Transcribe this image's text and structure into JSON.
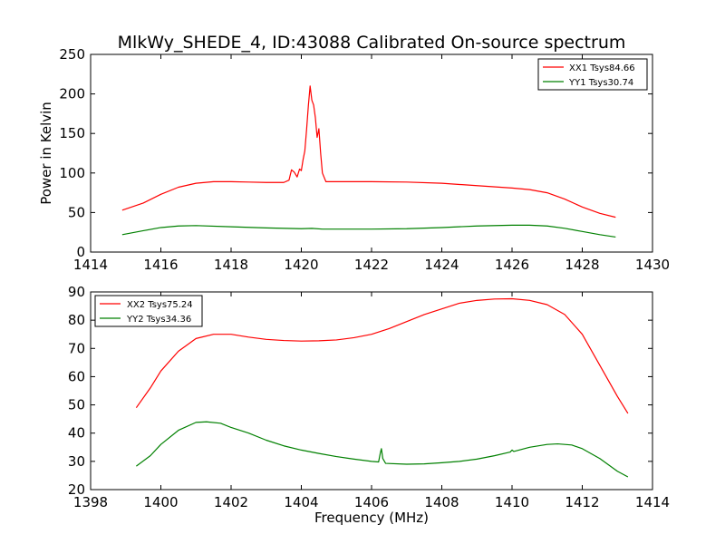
{
  "title": "MlkWy_SHEDE_4, ID:43088 Calibrated On-source spectrum",
  "chart_data": [
    {
      "type": "line",
      "title": "MlkWy_SHEDE_4, ID:43088 Calibrated On-source spectrum",
      "xlabel": "",
      "ylabel": "Power in Kelvin",
      "xlim": [
        1414,
        1430
      ],
      "ylim": [
        0,
        250
      ],
      "xticks": [
        1414,
        1416,
        1418,
        1420,
        1422,
        1424,
        1426,
        1428,
        1430
      ],
      "yticks": [
        0,
        50,
        100,
        150,
        200,
        250
      ],
      "legend": "top-right",
      "grid": false,
      "series": [
        {
          "name": "XX1 Tsys84.66",
          "color": "#ff0000",
          "points": [
            [
              1414.9,
              53
            ],
            [
              1415.5,
              62
            ],
            [
              1416.0,
              73
            ],
            [
              1416.5,
              82
            ],
            [
              1417.0,
              87
            ],
            [
              1417.5,
              89
            ],
            [
              1418.0,
              89
            ],
            [
              1418.5,
              88.5
            ],
            [
              1419.0,
              88
            ],
            [
              1419.5,
              88
            ],
            [
              1419.65,
              91
            ],
            [
              1419.72,
              104
            ],
            [
              1419.8,
              101
            ],
            [
              1419.88,
              95
            ],
            [
              1419.95,
              105
            ],
            [
              1420.0,
              103
            ],
            [
              1420.05,
              117
            ],
            [
              1420.1,
              128
            ],
            [
              1420.15,
              155
            ],
            [
              1420.2,
              185
            ],
            [
              1420.25,
              210
            ],
            [
              1420.3,
              192
            ],
            [
              1420.35,
              186
            ],
            [
              1420.4,
              170
            ],
            [
              1420.45,
              145
            ],
            [
              1420.5,
              156
            ],
            [
              1420.55,
              125
            ],
            [
              1420.6,
              100
            ],
            [
              1420.7,
              89
            ],
            [
              1421.0,
              89
            ],
            [
              1422.0,
              89
            ],
            [
              1423.0,
              88.5
            ],
            [
              1424.0,
              87
            ],
            [
              1425.0,
              84
            ],
            [
              1426.0,
              81
            ],
            [
              1426.5,
              79
            ],
            [
              1427.0,
              75
            ],
            [
              1427.5,
              67
            ],
            [
              1428.0,
              57
            ],
            [
              1428.5,
              49
            ],
            [
              1428.95,
              44
            ]
          ]
        },
        {
          "name": "YY1 Tsys30.74",
          "color": "#008000",
          "points": [
            [
              1414.9,
              22
            ],
            [
              1415.5,
              27
            ],
            [
              1416.0,
              31
            ],
            [
              1416.5,
              33
            ],
            [
              1417.0,
              33.5
            ],
            [
              1418.0,
              32
            ],
            [
              1419.0,
              30.5
            ],
            [
              1420.0,
              29.5
            ],
            [
              1420.3,
              30
            ],
            [
              1420.6,
              29
            ],
            [
              1421.0,
              29
            ],
            [
              1422.0,
              29
            ],
            [
              1423.0,
              29.5
            ],
            [
              1424.0,
              31
            ],
            [
              1425.0,
              33
            ],
            [
              1426.0,
              34
            ],
            [
              1426.5,
              34
            ],
            [
              1427.0,
              33
            ],
            [
              1427.5,
              30
            ],
            [
              1428.0,
              26
            ],
            [
              1428.5,
              22
            ],
            [
              1428.95,
              19
            ]
          ]
        }
      ]
    },
    {
      "type": "line",
      "title": "",
      "xlabel": "Frequency (MHz)",
      "ylabel": "",
      "xlim": [
        1398,
        1414
      ],
      "ylim": [
        20,
        90
      ],
      "xticks": [
        1398,
        1400,
        1402,
        1404,
        1406,
        1408,
        1410,
        1412,
        1414
      ],
      "yticks": [
        20,
        30,
        40,
        50,
        60,
        70,
        80,
        90
      ],
      "legend": "top-left",
      "grid": false,
      "series": [
        {
          "name": "XX2 Tsys75.24",
          "color": "#ff0000",
          "points": [
            [
              1399.3,
              49
            ],
            [
              1399.7,
              56
            ],
            [
              1400.0,
              62
            ],
            [
              1400.5,
              69
            ],
            [
              1401.0,
              73.5
            ],
            [
              1401.5,
              75
            ],
            [
              1402.0,
              75
            ],
            [
              1402.5,
              74
            ],
            [
              1403.0,
              73.2
            ],
            [
              1403.5,
              72.8
            ],
            [
              1404.0,
              72.6
            ],
            [
              1404.5,
              72.7
            ],
            [
              1405.0,
              73
            ],
            [
              1405.5,
              73.8
            ],
            [
              1406.0,
              75
            ],
            [
              1406.5,
              77
            ],
            [
              1407.0,
              79.5
            ],
            [
              1407.5,
              82
            ],
            [
              1408.0,
              84
            ],
            [
              1408.5,
              86
            ],
            [
              1409.0,
              87
            ],
            [
              1409.5,
              87.5
            ],
            [
              1410.0,
              87.6
            ],
            [
              1410.5,
              87
            ],
            [
              1411.0,
              85.5
            ],
            [
              1411.5,
              82
            ],
            [
              1412.0,
              75
            ],
            [
              1412.5,
              64
            ],
            [
              1413.0,
              53
            ],
            [
              1413.3,
              47
            ]
          ]
        },
        {
          "name": "YY2 Tsys34.36",
          "color": "#008000",
          "points": [
            [
              1399.3,
              28.3
            ],
            [
              1399.7,
              32
            ],
            [
              1400.0,
              36
            ],
            [
              1400.5,
              41
            ],
            [
              1401.0,
              43.8
            ],
            [
              1401.3,
              44
            ],
            [
              1401.7,
              43.5
            ],
            [
              1402.0,
              42
            ],
            [
              1402.5,
              40
            ],
            [
              1403.0,
              37.5
            ],
            [
              1403.5,
              35.5
            ],
            [
              1404.0,
              34
            ],
            [
              1404.5,
              32.8
            ],
            [
              1405.0,
              31.7
            ],
            [
              1405.5,
              30.8
            ],
            [
              1406.0,
              30
            ],
            [
              1406.2,
              29.8
            ],
            [
              1406.25,
              33
            ],
            [
              1406.28,
              34.5
            ],
            [
              1406.32,
              31
            ],
            [
              1406.4,
              29.3
            ],
            [
              1407.0,
              29
            ],
            [
              1407.5,
              29.1
            ],
            [
              1408.0,
              29.5
            ],
            [
              1408.5,
              30
            ],
            [
              1409.0,
              30.8
            ],
            [
              1409.5,
              32
            ],
            [
              1409.95,
              33.3
            ],
            [
              1410.0,
              34
            ],
            [
              1410.05,
              33.5
            ],
            [
              1410.5,
              35
            ],
            [
              1411.0,
              36
            ],
            [
              1411.3,
              36.2
            ],
            [
              1411.7,
              35.8
            ],
            [
              1412.0,
              34.5
            ],
            [
              1412.5,
              31
            ],
            [
              1413.0,
              26.5
            ],
            [
              1413.3,
              24.5
            ]
          ]
        }
      ]
    }
  ]
}
